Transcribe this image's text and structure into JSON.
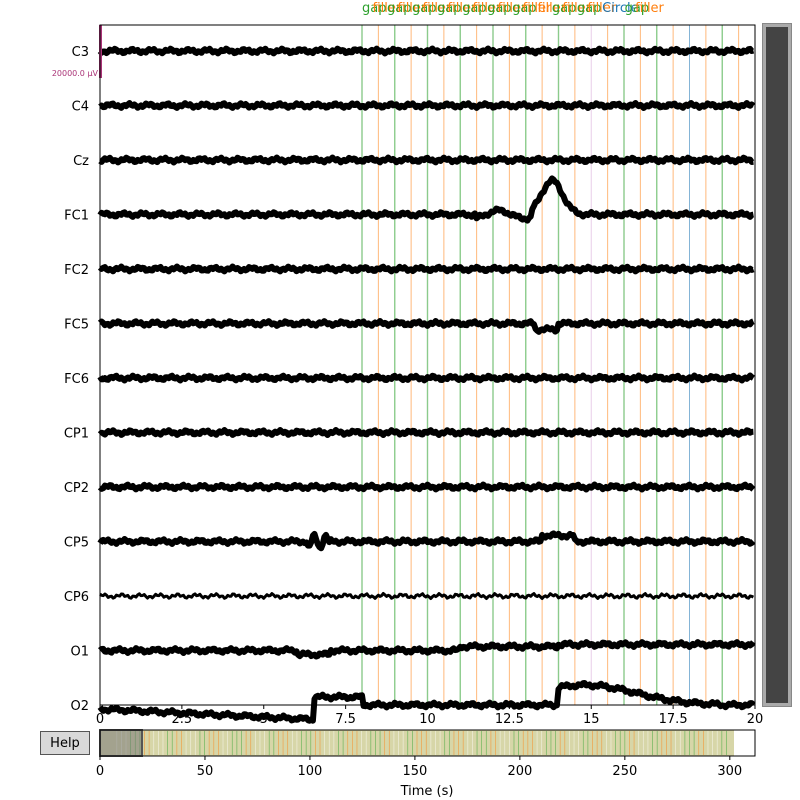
{
  "help_button": "Help",
  "channels": [
    "C3",
    "C4",
    "Cz",
    "FC1",
    "FC2",
    "FC5",
    "FC6",
    "CP1",
    "CP2",
    "CP5",
    "CP6",
    "O1",
    "O2"
  ],
  "scale_label": "20000.0 µV",
  "x_axis": {
    "ticks": [
      "0",
      "2.5",
      "5",
      "7.5",
      "10",
      "12.5",
      "15",
      "17.5",
      "20"
    ],
    "range": [
      0,
      20
    ]
  },
  "overview_axis": {
    "label": "Time (s)",
    "ticks": [
      "0",
      "50",
      "100",
      "150",
      "200",
      "250",
      "300"
    ],
    "range": [
      0,
      312
    ],
    "window": [
      0,
      20
    ]
  },
  "annotations": {
    "label_order": [
      "gap",
      "filler",
      "gap",
      "filler",
      "gap",
      "filler",
      "gap",
      "filler",
      "gap",
      "filler",
      "gap",
      "filler",
      "gap",
      "filler",
      "filler",
      "gap",
      "filler",
      "gap",
      "filler",
      "Circle",
      "gap",
      "filler"
    ],
    "time_marks": [
      {
        "t": 8.0,
        "kind": "gap"
      },
      {
        "t": 8.5,
        "kind": "filler"
      },
      {
        "t": 9.0,
        "kind": "gap"
      },
      {
        "t": 9.5,
        "kind": "filler"
      },
      {
        "t": 10.0,
        "kind": "gap"
      },
      {
        "t": 10.5,
        "kind": "filler"
      },
      {
        "t": 11.0,
        "kind": "gap"
      },
      {
        "t": 11.5,
        "kind": "filler"
      },
      {
        "t": 12.0,
        "kind": "gap"
      },
      {
        "t": 12.5,
        "kind": "filler"
      },
      {
        "t": 13.0,
        "kind": "gap"
      },
      {
        "t": 13.5,
        "kind": "filler"
      },
      {
        "t": 14.0,
        "kind": "gap"
      },
      {
        "t": 14.5,
        "kind": "filler"
      },
      {
        "t": 15.0,
        "kind": "other"
      },
      {
        "t": 15.5,
        "kind": "filler"
      },
      {
        "t": 16.0,
        "kind": "gap"
      },
      {
        "t": 16.5,
        "kind": "filler"
      },
      {
        "t": 17.0,
        "kind": "gap"
      },
      {
        "t": 17.5,
        "kind": "filler"
      },
      {
        "t": 18.0,
        "kind": "circle"
      },
      {
        "t": 18.5,
        "kind": "filler"
      },
      {
        "t": 19.0,
        "kind": "gap"
      },
      {
        "t": 19.5,
        "kind": "filler"
      }
    ]
  },
  "colors": {
    "trace": "#000000",
    "gap": "#2ca02c",
    "filler": "#ff7f0e",
    "circle": "#1f77b4",
    "other": "#d6a6d6",
    "scale_bar": "#aa3377",
    "overview_fill": "#d7d6a8",
    "scrollbar_thumb": "#444444"
  }
}
